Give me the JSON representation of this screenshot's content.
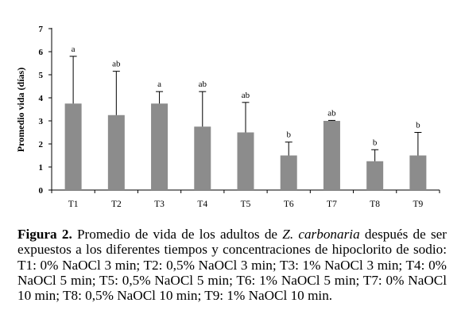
{
  "chart_data": {
    "type": "bar",
    "ylabel": "Promedio vida (días)",
    "xlabel": "",
    "title": "",
    "ylim": [
      0,
      7
    ],
    "yticks": [
      0,
      1,
      2,
      3,
      4,
      5,
      6,
      7
    ],
    "categories": [
      "T1",
      "T2",
      "T3",
      "T4",
      "T5",
      "T6",
      "T7",
      "T8",
      "T9"
    ],
    "values": [
      3.75,
      3.25,
      3.75,
      2.75,
      2.5,
      1.5,
      3.0,
      1.25,
      1.5
    ],
    "error_upper": [
      5.8,
      5.15,
      4.27,
      4.27,
      3.8,
      2.08,
      3.02,
      1.75,
      2.5
    ],
    "annotations": [
      "a",
      "ab",
      "a",
      "ab",
      "ab",
      "b",
      "ab",
      "b",
      "b"
    ],
    "bar_color": "#8c8c8c",
    "grid": false,
    "legend": "none"
  },
  "caption": {
    "label": "Figura 2.",
    "text_before_species": " Promedio de vida de los adultos de ",
    "species": "Z. carbonaria",
    "text_after_species": " después de ser expuestos a los diferentes tiempos y concentraciones de hipoclorito de sodio: T1: 0% NaOCl 3 min; T2: 0,5% NaOCl 3 min; T3: 1% NaOCl 3 min; T4: 0% NaOCl 5 min; T5: 0,5% NaOCl 5 min; T6: 1% NaOCl 5 min; T7: 0% NaOCl 10 min; T8: 0,5% NaOCl 10 min; T9: 1% NaOCl 10 min."
  }
}
